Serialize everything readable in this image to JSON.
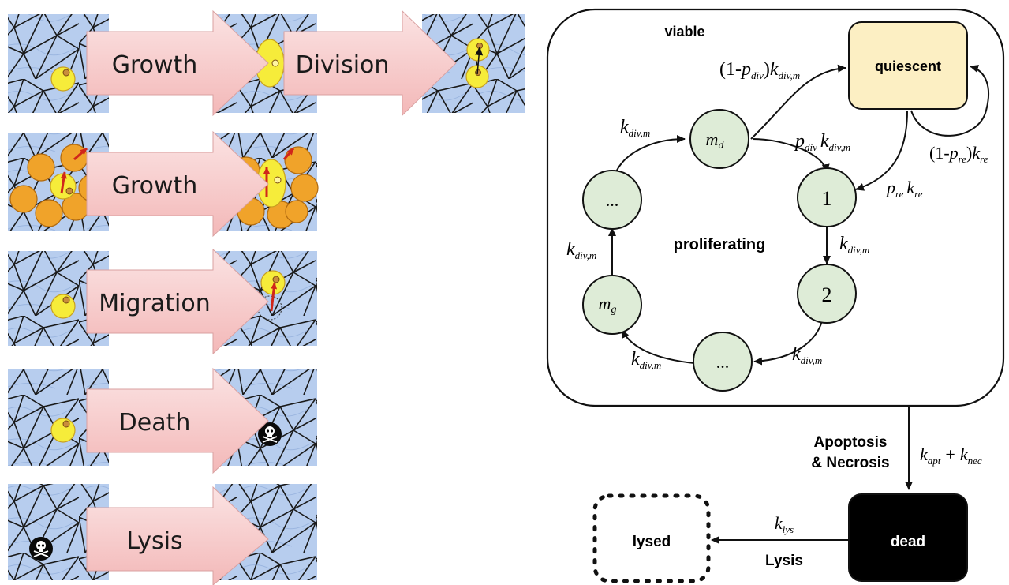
{
  "left_panel": {
    "rows": [
      {
        "label": "Growth",
        "label2": "Division"
      },
      {
        "label": "Growth"
      },
      {
        "label": "Migration"
      },
      {
        "label": "Death"
      },
      {
        "label": "Lysis"
      }
    ]
  },
  "state_diagram": {
    "viable_label": "viable",
    "quiescent_label": "quiescent",
    "proliferating_label": "proliferating",
    "dead_label": "dead",
    "lysed_label": "lysed",
    "apoptosis_label_1": "Apoptosis",
    "apoptosis_label_2": "& Necrosis",
    "lysis_label": "Lysis",
    "nodes": {
      "md": "m",
      "md_sub": "d",
      "one": "1",
      "two": "2",
      "dots_bottom": "...",
      "dots_left": "...",
      "mg": "m",
      "mg_sub": "g"
    },
    "rates": {
      "k": "k",
      "p": "p",
      "div_m": "div,m",
      "div": "div",
      "re": "re",
      "apt": "apt",
      "nec": "nec",
      "lys": "lys",
      "one_minus_open": "(1-",
      "close": ")",
      "plus": "+"
    }
  }
}
